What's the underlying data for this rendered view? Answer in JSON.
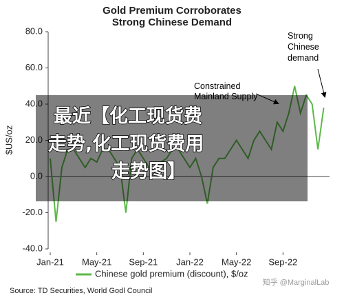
{
  "chart_data": {
    "type": "line",
    "title": "Gold Premium Corroborates",
    "subtitle": "Strong Chinese Demand",
    "y_label": "$US/oz",
    "x": [
      0,
      0.5,
      1,
      1.5,
      2,
      2.5,
      3,
      3.5,
      4,
      4.5,
      5,
      5.5,
      6,
      6.5,
      7,
      7.5,
      8,
      8.5,
      9,
      9.5,
      10,
      10.5,
      11,
      11.5,
      12,
      12.5,
      13,
      13.5,
      14,
      14.5,
      15,
      15.5,
      16,
      16.5,
      17,
      17.5,
      18,
      18.5,
      19,
      19.5,
      20,
      20.5,
      21,
      21.5,
      22,
      22.5,
      23,
      23.5
    ],
    "series": [
      {
        "name": "Chinese gold  premium (discount), $/oz",
        "color": "#5cb848",
        "values": [
          10,
          -25,
          5,
          15,
          15,
          10,
          5,
          10,
          8,
          15,
          15,
          10,
          5,
          -20,
          10,
          15,
          10,
          5,
          5,
          8,
          10,
          15,
          15,
          10,
          5,
          10,
          0,
          -15,
          5,
          10,
          10,
          15,
          20,
          15,
          10,
          20,
          25,
          20,
          15,
          30,
          25,
          35,
          50,
          35,
          45,
          40,
          15,
          38
        ]
      }
    ],
    "xlim": [
      0,
      24
    ],
    "xticks": [
      {
        "value": 0,
        "label": "Jan-21"
      },
      {
        "value": 4,
        "label": "May-21"
      },
      {
        "value": 8,
        "label": "Sep-21"
      },
      {
        "value": 12,
        "label": "Jan-22"
      },
      {
        "value": 16,
        "label": "May-22"
      },
      {
        "value": 20,
        "label": "Sep-22"
      }
    ],
    "ylim": [
      -40,
      80
    ],
    "yticks": [
      {
        "value": -40,
        "label": "-40.0"
      },
      {
        "value": -20,
        "label": "-20.0"
      },
      {
        "value": 0,
        "label": "0.0"
      },
      {
        "value": 20,
        "label": "20.0"
      },
      {
        "value": 40,
        "label": "40.0"
      },
      {
        "value": 60,
        "label": "60.0"
      },
      {
        "value": 80,
        "label": "80.0"
      }
    ],
    "grid": false,
    "annotations": [
      "Constrained Mainland Supply",
      "Strong Chinese demand"
    ],
    "source": "Source: TD Securities, World Godl Council"
  },
  "overlay": [
    "最近【化工现货费",
    "走势,化工现货费用",
    "走势图】"
  ],
  "watermark": "知乎 @MarginalLab"
}
